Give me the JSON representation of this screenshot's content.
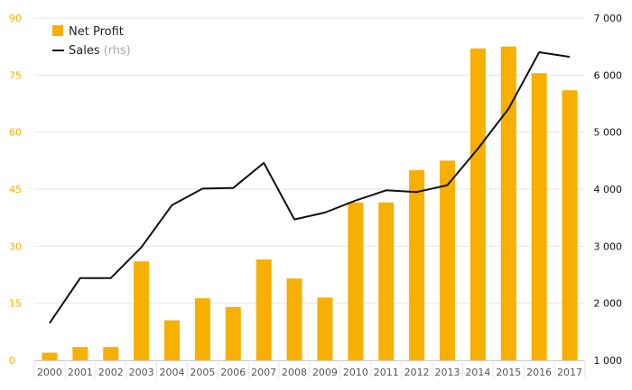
{
  "chart_data": {
    "type": "bar+line",
    "categories": [
      "2000",
      "2001",
      "2002",
      "2003",
      "2004",
      "2005",
      "2006",
      "2007",
      "2008",
      "2009",
      "2010",
      "2011",
      "2012",
      "2013",
      "2014",
      "2015",
      "2016",
      "2017"
    ],
    "series": [
      {
        "name": "Net Profit",
        "type": "bar",
        "axis": "left",
        "color": "#F7AF00",
        "values": [
          2.0,
          3.5,
          3.5,
          26.0,
          10.5,
          16.3,
          14.0,
          26.5,
          21.5,
          16.5,
          41.5,
          41.5,
          50.0,
          52.5,
          82.0,
          82.5,
          75.5,
          71.0
        ]
      },
      {
        "name": "Sales",
        "name_suffix": "(rhs)",
        "type": "line",
        "axis": "right",
        "color": "#111111",
        "values": [
          1650,
          2440,
          2440,
          2980,
          3720,
          4010,
          4020,
          4460,
          3470,
          3590,
          3800,
          3980,
          3950,
          4070,
          4710,
          5410,
          6400,
          6320
        ]
      }
    ],
    "y_left": {
      "ticks": [
        "0",
        "15",
        "30",
        "45",
        "60",
        "75",
        "90"
      ],
      "range": [
        0,
        90
      ],
      "color": "#F7AF00"
    },
    "y_right": {
      "ticks": [
        "1 000",
        "2 000",
        "3 000",
        "4 000",
        "5 000",
        "6 000",
        "7 000"
      ],
      "range": [
        1000,
        7000
      ]
    },
    "grid": true,
    "legend_position": "top-left"
  }
}
